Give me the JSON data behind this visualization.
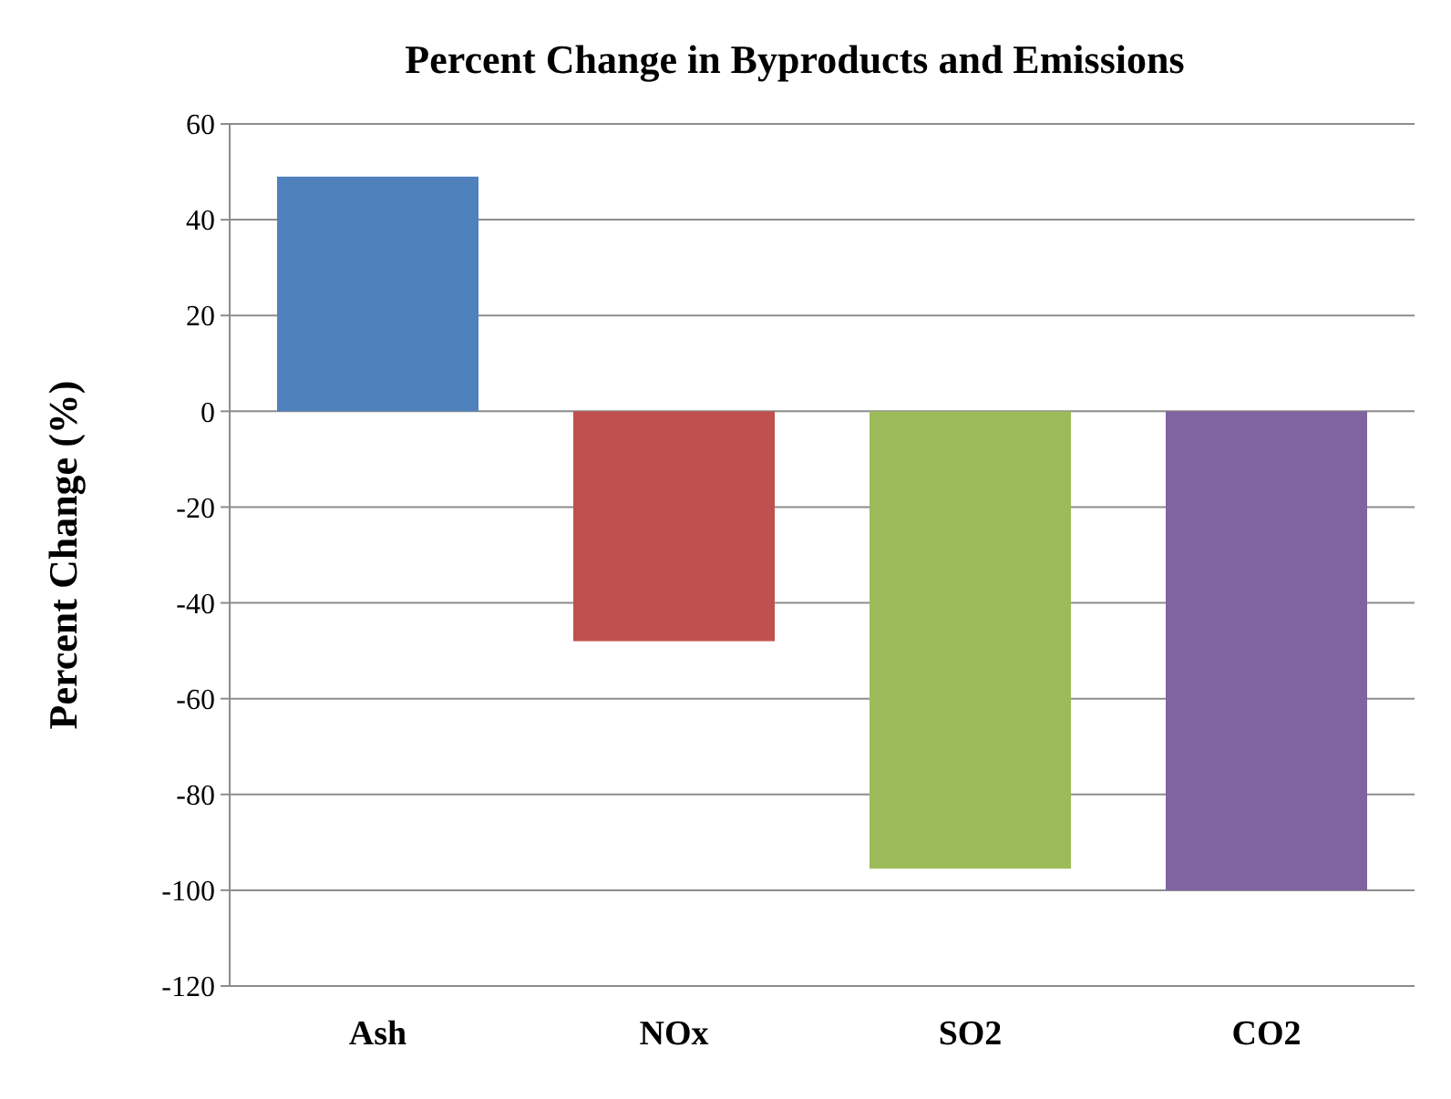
{
  "chart_data": {
    "type": "bar",
    "title": "Percent Change in Byproducts and Emissions",
    "ylabel": "Percent Change (%)",
    "categories": [
      "Ash",
      "NOx",
      "SO2",
      "CO2"
    ],
    "values": [
      49,
      -48,
      -95.5,
      -100
    ],
    "colors": [
      "#4f81bd",
      "#c0504d",
      "#9bbb59",
      "#8064a2"
    ],
    "ylim": [
      -120,
      60
    ],
    "yticks": [
      -120,
      -100,
      -80,
      -60,
      -40,
      -20,
      0,
      20,
      40,
      60
    ],
    "grid": "y"
  }
}
